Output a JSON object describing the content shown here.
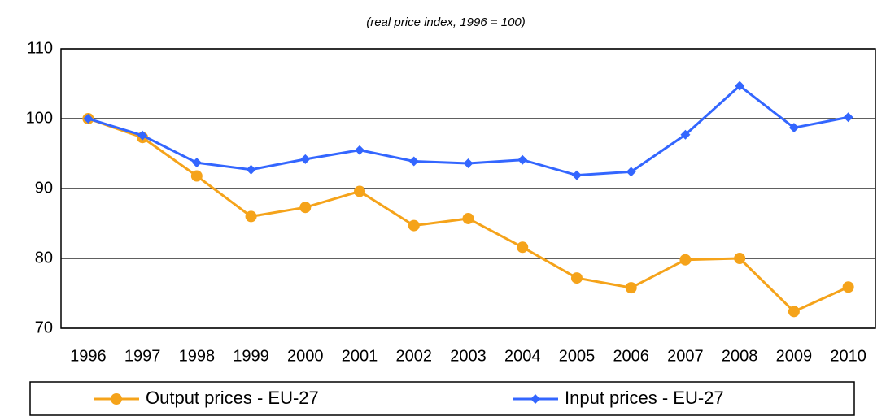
{
  "chart_data": {
    "type": "line",
    "subtitle": "(real price index, 1996 = 100)",
    "categories": [
      "1996",
      "1997",
      "1998",
      "1999",
      "2000",
      "2001",
      "2002",
      "2003",
      "2004",
      "2005",
      "2006",
      "2007",
      "2008",
      "2009",
      "2010"
    ],
    "series": [
      {
        "name": "Output prices - EU-27",
        "color": "#f5a31a",
        "marker": "circle",
        "values": [
          100,
          97.3,
          91.8,
          86,
          87.3,
          89.6,
          84.7,
          85.7,
          81.6,
          77.2,
          75.8,
          79.8,
          80,
          72.4,
          75.9
        ]
      },
      {
        "name": "Input prices - EU-27",
        "color": "#3366ff",
        "marker": "diamond",
        "values": [
          100,
          97.6,
          93.7,
          92.7,
          94.2,
          95.5,
          93.9,
          93.6,
          94.1,
          91.9,
          92.4,
          97.7,
          104.7,
          98.7,
          100.2
        ]
      }
    ],
    "ylim": [
      70,
      110
    ],
    "yticks": [
      70,
      80,
      90,
      100,
      110
    ],
    "grid": true,
    "legend": "bottom"
  }
}
